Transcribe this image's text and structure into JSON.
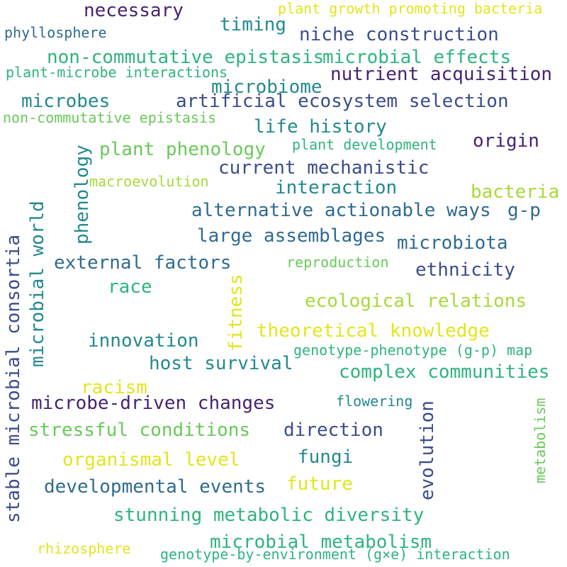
{
  "palette": {
    "background": "#ffffff",
    "dark_purple": "#46246f",
    "indigo": "#3b4d8a",
    "blue": "#2f6b8e",
    "teal": "#23898e",
    "green": "#2fb47c",
    "light_green": "#69c95a",
    "lime": "#a8d93a",
    "yellow": "#e3e51c"
  },
  "words": [
    "necessary",
    "plant growth promoting bacteria",
    "phyllosphere",
    "timing",
    "niche construction",
    "non-commutative epistasis",
    "microbial effects",
    "plant-microbe interactions",
    "nutrient acquisition",
    "microbiome",
    "microbes",
    "artificial ecosystem selection",
    "non-commutative epistasis",
    "life history",
    "origin",
    "plant phenology",
    "plant development",
    "phenology",
    "current mechanistic",
    "macroevolution",
    "interaction",
    "bacteria",
    "alternative actionable ways",
    "g-p",
    "stable microbial consortia",
    "microbial world",
    "large assemblages",
    "microbiota",
    "external factors",
    "reproduction",
    "ethnicity",
    "race",
    "fitness",
    "ecological relations",
    "theoretical knowledge",
    "innovation",
    "genotype-phenotype (g-p) map",
    "host survival",
    "complex communities",
    "racism",
    "flowering",
    "microbe-driven changes",
    "evolution",
    "metabolism",
    "stressful conditions",
    "direction",
    "organismal level",
    "fungi",
    "developmental events",
    "future",
    "stunning metabolic diversity",
    "microbial metabolism",
    "rhizosphere",
    "genotype-by-environment (g×e) interaction"
  ]
}
